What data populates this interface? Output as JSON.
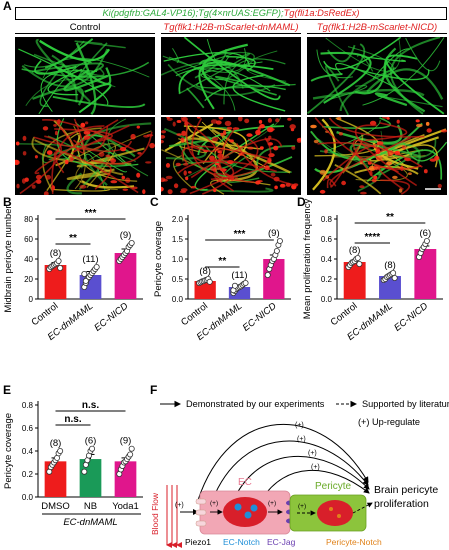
{
  "panel_labels": {
    "a": "A",
    "b": "B",
    "c": "C",
    "d": "D",
    "e": "E",
    "f": "F"
  },
  "header": {
    "part1": "Ki(pdgfrb:GAL4-VP16);Tg(4×nrUAS:EGFP);",
    "part2": "Tg(fli1a:DsRedEx)",
    "color1": "#2eaa3c",
    "color2": "#e02020"
  },
  "micrographs": {
    "columns": [
      {
        "title": "Control",
        "italic": false
      },
      {
        "title": "Tg(flk1:H2B-mScarlet-dnMAML)",
        "italic": true
      },
      {
        "title": "Tg(flk1:H2B-mScarlet-NICD)",
        "italic": true
      }
    ]
  },
  "bar_colors": {
    "red": "#ee1c1c",
    "blue": "#5a4fd0",
    "magenta": "#e0168c",
    "green": "#1a9a58"
  },
  "chart_data": [
    {
      "type": "bar",
      "panel": "B",
      "categories": [
        "Control",
        "EC-dnMAML",
        "EC-NICD"
      ],
      "category_italic": [
        false,
        true,
        true
      ],
      "values": [
        34,
        24,
        46
      ],
      "errors": [
        2.5,
        3.5,
        4
      ],
      "n": [
        "(8)",
        "(11)",
        "(9)"
      ],
      "ylabel": "Midbrain pericyte number",
      "ylim": [
        0,
        80
      ],
      "yticks": [
        "0",
        "20",
        "40",
        "60",
        "80"
      ],
      "points": [
        [
          30,
          32,
          33,
          34,
          35,
          36,
          38,
          31
        ],
        [
          12,
          16,
          20,
          22,
          24,
          26,
          28,
          30,
          32,
          25,
          18
        ],
        [
          38,
          40,
          42,
          44,
          46,
          48,
          52,
          54,
          56
        ]
      ],
      "significance": [
        {
          "pair": [
            0,
            1
          ],
          "label": "**"
        },
        {
          "pair": [
            0,
            2
          ],
          "label": "***"
        }
      ]
    },
    {
      "type": "bar",
      "panel": "C",
      "categories": [
        "Control",
        "EC-dnMAML",
        "EC-NICD"
      ],
      "category_italic": [
        false,
        true,
        true
      ],
      "values": [
        0.45,
        0.3,
        1.0
      ],
      "errors": [
        0.03,
        0.05,
        0.1
      ],
      "n": [
        "(8)",
        "(11)",
        "(9)"
      ],
      "ylabel": "Pericyte coverage",
      "ylim": [
        0,
        2.0
      ],
      "yticks": [
        "0.0",
        "0.5",
        "1.0",
        "1.5",
        "2.0"
      ],
      "points": [
        [
          0.4,
          0.42,
          0.44,
          0.45,
          0.47,
          0.48,
          0.5,
          0.43
        ],
        [
          0.15,
          0.2,
          0.25,
          0.28,
          0.3,
          0.32,
          0.35,
          0.38,
          0.4,
          0.22,
          0.33
        ],
        [
          0.6,
          0.75,
          0.85,
          0.95,
          1.0,
          1.1,
          1.2,
          1.35,
          1.45
        ]
      ],
      "significance": [
        {
          "pair": [
            0,
            1
          ],
          "label": "**"
        },
        {
          "pair": [
            0,
            2
          ],
          "label": "***"
        }
      ]
    },
    {
      "type": "bar",
      "panel": "D",
      "categories": [
        "Control",
        "EC-dnMAML",
        "EC-NICD"
      ],
      "category_italic": [
        false,
        true,
        true
      ],
      "values": [
        0.37,
        0.23,
        0.5
      ],
      "errors": [
        0.02,
        0.015,
        0.03
      ],
      "n": [
        "(8)",
        "(8)",
        "(6)"
      ],
      "ylabel": "Mean proliferation frequency",
      "ylim": [
        0,
        0.8
      ],
      "yticks": [
        "0.0",
        "0.2",
        "0.4",
        "0.6",
        "0.8"
      ],
      "points": [
        [
          0.32,
          0.34,
          0.36,
          0.37,
          0.38,
          0.4,
          0.41,
          0.35
        ],
        [
          0.19,
          0.2,
          0.22,
          0.23,
          0.24,
          0.25,
          0.26,
          0.21
        ],
        [
          0.42,
          0.46,
          0.5,
          0.52,
          0.55,
          0.58
        ]
      ],
      "significance": [
        {
          "pair": [
            0,
            1
          ],
          "label": "****"
        },
        {
          "pair": [
            0,
            2
          ],
          "label": "**"
        }
      ]
    },
    {
      "type": "bar",
      "panel": "E",
      "categories": [
        "DMSO",
        "NB",
        "Yoda1"
      ],
      "category_italic": [
        false,
        false,
        false
      ],
      "group_label": "EC-dnMAML",
      "values": [
        0.31,
        0.33,
        0.31
      ],
      "errors": [
        0.03,
        0.04,
        0.03
      ],
      "n": [
        "(8)",
        "(6)",
        "(9)"
      ],
      "ylabel": "Pericyte coverage",
      "ylim": [
        0,
        0.8
      ],
      "yticks": [
        "0.0",
        "0.2",
        "0.4",
        "0.6",
        "0.8"
      ],
      "points": [
        [
          0.22,
          0.26,
          0.28,
          0.3,
          0.32,
          0.34,
          0.38,
          0.4
        ],
        [
          0.22,
          0.28,
          0.32,
          0.36,
          0.4,
          0.42
        ],
        [
          0.2,
          0.24,
          0.27,
          0.3,
          0.31,
          0.33,
          0.35,
          0.37,
          0.42
        ]
      ],
      "significance": [
        {
          "pair": [
            0,
            1
          ],
          "label": "n.s."
        },
        {
          "pair": [
            0,
            2
          ],
          "label": "n.s."
        }
      ]
    }
  ],
  "diagram": {
    "legend": {
      "solid": "Demonstrated by our experiments",
      "dashed": "Supported by literature",
      "up": "(+) Up-regulate"
    },
    "plus": "(+)",
    "blood_flow": "Blood Flow",
    "ec": "EC",
    "pericyte": "Pericyte",
    "outcome": "Brain pericyte proliferation",
    "piezo1": "Piezo1",
    "ec_notch": "EC-Notch",
    "ec_jag": "EC-Jag",
    "pericyte_notch": "Pericyte-Notch",
    "colors": {
      "ec_notch": "#1f8fd8",
      "ec_jag": "#6a3fb0",
      "pericyte_notch": "#e0821a",
      "blood": "#d81f2a",
      "ec_fill": "#f2a7b5",
      "pericyte_fill": "#8cc43c"
    }
  }
}
